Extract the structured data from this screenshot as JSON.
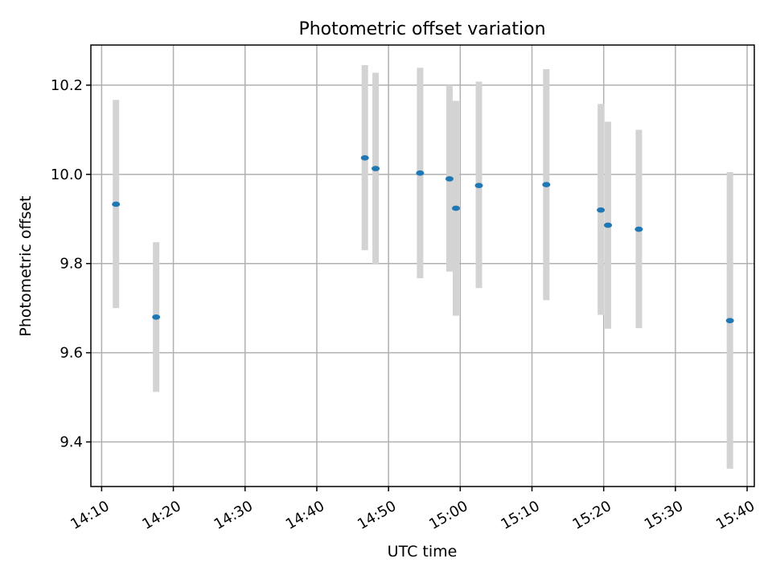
{
  "chart_data": {
    "type": "scatter",
    "title": "Photometric offset variation",
    "xlabel": "UTC time",
    "ylabel": "Photometric offset",
    "xlim": [
      "14:08:30",
      "15:41:00"
    ],
    "ylim": [
      9.3,
      10.29
    ],
    "x_ticks": [
      "14:10",
      "14:20",
      "14:30",
      "14:40",
      "14:50",
      "15:00",
      "15:10",
      "15:20",
      "15:30",
      "15:40"
    ],
    "y_ticks": [
      9.4,
      9.6,
      9.8,
      10.0,
      10.2
    ],
    "y_tick_labels": [
      "9.4",
      "9.6",
      "9.8",
      "10.0",
      "10.2"
    ],
    "grid": true,
    "marker_color": "#1f77b4",
    "errorbar_color": "#d3d3d3",
    "points": [
      {
        "time": "14:12:00",
        "y": 9.933,
        "ymin": 9.7,
        "ymax": 10.167
      },
      {
        "time": "14:17:36",
        "y": 9.68,
        "ymin": 9.512,
        "ymax": 9.848
      },
      {
        "time": "14:46:42",
        "y": 10.037,
        "ymin": 9.83,
        "ymax": 10.245
      },
      {
        "time": "14:48:12",
        "y": 10.013,
        "ymin": 9.798,
        "ymax": 10.228
      },
      {
        "time": "14:54:24",
        "y": 10.003,
        "ymin": 9.767,
        "ymax": 10.239
      },
      {
        "time": "14:58:30",
        "y": 9.99,
        "ymin": 9.782,
        "ymax": 10.2
      },
      {
        "time": "14:59:24",
        "y": 9.924,
        "ymin": 9.683,
        "ymax": 10.165
      },
      {
        "time": "15:02:36",
        "y": 9.975,
        "ymin": 9.745,
        "ymax": 10.208
      },
      {
        "time": "15:12:00",
        "y": 9.977,
        "ymin": 9.718,
        "ymax": 10.236
      },
      {
        "time": "15:19:36",
        "y": 9.92,
        "ymin": 9.685,
        "ymax": 10.158
      },
      {
        "time": "15:20:36",
        "y": 9.886,
        "ymin": 9.654,
        "ymax": 10.118
      },
      {
        "time": "15:24:54",
        "y": 9.877,
        "ymin": 9.655,
        "ymax": 10.1
      },
      {
        "time": "15:37:36",
        "y": 9.672,
        "ymin": 9.34,
        "ymax": 10.005
      }
    ]
  }
}
